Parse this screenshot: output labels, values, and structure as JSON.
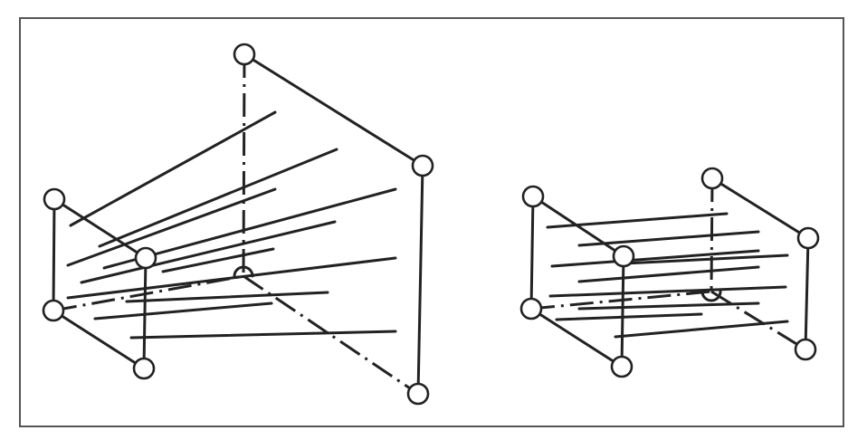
{
  "figure": {
    "panels": [
      {
        "id": "frustum",
        "shape": "perspective-frustum"
      },
      {
        "id": "box",
        "shape": "orthographic-box"
      }
    ],
    "colors": {
      "stroke": "#222222",
      "frame": "#555555",
      "background": "#ffffff"
    }
  }
}
